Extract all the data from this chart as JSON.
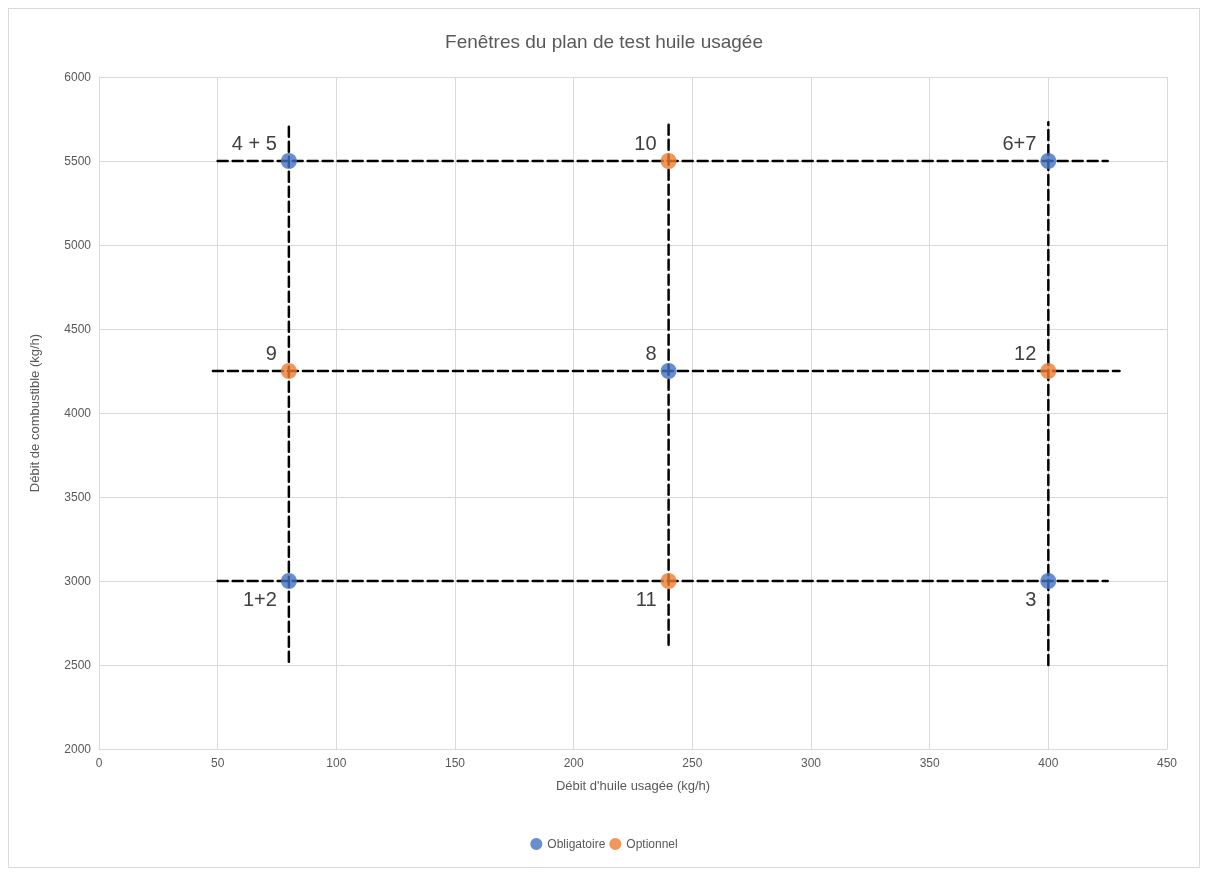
{
  "chart_data": {
    "type": "scatter",
    "title": "Fenêtres du plan de test huile usagée",
    "xlabel": "Débit d'huile usagée (kg/h)",
    "ylabel": "Débit de combustible (kg/h)",
    "xlim": [
      0,
      450
    ],
    "xticks": [
      0,
      50,
      100,
      150,
      200,
      250,
      300,
      350,
      400,
      450
    ],
    "ylim": [
      2000,
      6000
    ],
    "yticks": [
      2000,
      2500,
      3000,
      3500,
      4000,
      4500,
      5000,
      5500,
      6000
    ],
    "grid": true,
    "legend": "bottom",
    "marker": "circle",
    "series": [
      {
        "type": "line",
        "color": "#000000",
        "line_style": "dashed",
        "marker": "none",
        "x": [
          50,
          425
        ],
        "values": [
          5500,
          5500
        ]
      },
      {
        "type": "line",
        "color": "#000000",
        "line_style": "dashed",
        "marker": "none",
        "x": [
          48,
          430
        ],
        "values": [
          4250,
          4250
        ]
      },
      {
        "type": "line",
        "color": "#000000",
        "line_style": "dashed",
        "marker": "none",
        "x": [
          50,
          425
        ],
        "values": [
          3000,
          3000
        ]
      },
      {
        "type": "line",
        "color": "#000000",
        "line_style": "dashed",
        "marker": "none",
        "x": [
          80,
          80
        ],
        "values": [
          2520,
          5730
        ]
      },
      {
        "type": "line",
        "color": "#000000",
        "line_style": "dashed",
        "marker": "none",
        "x": [
          240,
          240
        ],
        "values": [
          2620,
          5720
        ]
      },
      {
        "type": "line",
        "color": "#000000",
        "line_style": "dashed",
        "marker": "none",
        "x": [
          400,
          400
        ],
        "values": [
          2500,
          5730
        ]
      },
      {
        "name": "Obligatoire",
        "color": "#4472c4",
        "x": [
          80,
          400,
          240,
          80,
          400
        ],
        "values": [
          5500,
          5500,
          4250,
          3000,
          3000
        ]
      },
      {
        "name": "Optionnel",
        "color": "#ed7d31",
        "x": [
          240,
          80,
          400,
          240
        ],
        "values": [
          5500,
          4250,
          4250,
          3000
        ]
      }
    ],
    "annotations": [
      {
        "text": "4 + 5",
        "x": 80,
        "y": 5500
      },
      {
        "text": "10",
        "x": 240,
        "y": 5500
      },
      {
        "text": "6+7",
        "x": 400,
        "y": 5500
      },
      {
        "text": "9",
        "x": 80,
        "y": 4250
      },
      {
        "text": "8",
        "x": 240,
        "y": 4250
      },
      {
        "text": "12",
        "x": 400,
        "y": 4250
      },
      {
        "text": "1+2",
        "x": 80,
        "y": 3000
      },
      {
        "text": "11",
        "x": 240,
        "y": 3000
      },
      {
        "text": "3",
        "x": 400,
        "y": 3000
      }
    ]
  }
}
